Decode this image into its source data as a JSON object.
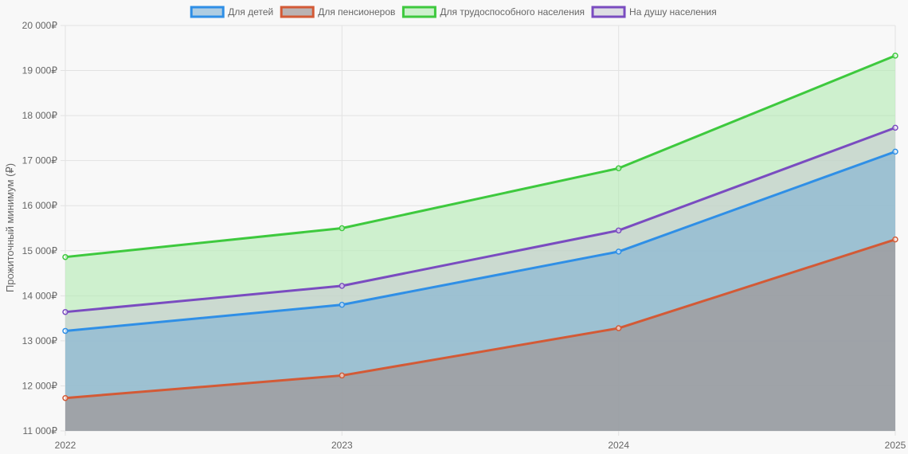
{
  "chart_data": {
    "type": "area",
    "title": "",
    "xlabel": "",
    "ylabel": "Прожиточный минимум (₽)",
    "categories": [
      "2022",
      "2023",
      "2024",
      "2025"
    ],
    "ylim": [
      11000,
      20000
    ],
    "y_ticks": [
      11000,
      12000,
      13000,
      14000,
      15000,
      16000,
      17000,
      18000,
      19000,
      20000
    ],
    "y_tick_labels": [
      "11 000₽",
      "12 000₽",
      "13 000₽",
      "14 000₽",
      "15 000₽",
      "16 000₽",
      "17 000₽",
      "18 000₽",
      "19 000₽",
      "20 000₽"
    ],
    "grid": true,
    "legend_position": "top",
    "series": [
      {
        "name": "Для детей",
        "values": [
          13220,
          13800,
          14980,
          17200
        ],
        "color": "#2f8fe6",
        "fill": "rgba(126,176,212,0.6)"
      },
      {
        "name": "Для пенсионеров",
        "values": [
          11730,
          12230,
          13280,
          15250
        ],
        "color": "#d35a36",
        "fill": "rgba(160,150,150,0.7)"
      },
      {
        "name": "Для трудоспособного населения",
        "values": [
          14860,
          15500,
          16830,
          19330
        ],
        "color": "#3ec93e",
        "fill": "rgba(178,235,178,0.6)"
      },
      {
        "name": "На душу населения",
        "values": [
          13640,
          14220,
          15450,
          17730
        ],
        "color": "#7a4cc0",
        "fill": "rgba(200,200,210,0.55)"
      }
    ]
  }
}
